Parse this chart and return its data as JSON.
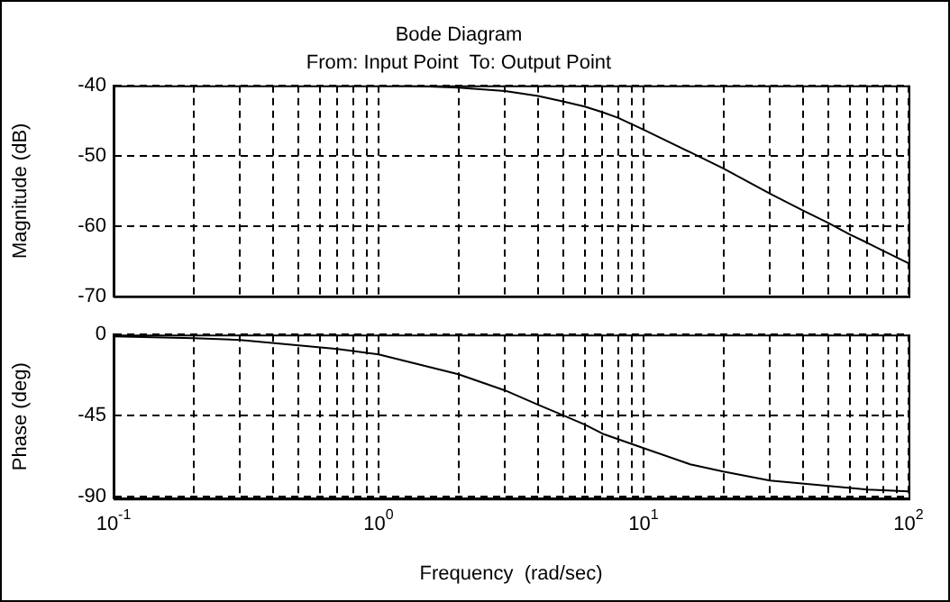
{
  "chart_data": [
    {
      "type": "line",
      "title": "Bode Diagram",
      "subtitle": "From: Input Point  To: Output Point",
      "ylabel": "Magnitude (dB)",
      "log": "x",
      "grid": true,
      "marker": "none",
      "line_style": "solid",
      "tick_labels": "y",
      "xlim": [
        0.1,
        100
      ],
      "ylim": [
        -70,
        -40
      ],
      "yticks": [
        -70,
        -60,
        -50,
        -40
      ],
      "xticks": [
        {
          "value": 0.1,
          "label": null
        },
        {
          "value": 0.2,
          "label": null
        },
        {
          "value": 0.3,
          "label": null
        },
        {
          "value": 0.4,
          "label": null
        },
        {
          "value": 0.5,
          "label": null
        },
        {
          "value": 0.6,
          "label": null
        },
        {
          "value": 0.7,
          "label": null
        },
        {
          "value": 0.8,
          "label": null
        },
        {
          "value": 0.9,
          "label": null
        },
        {
          "value": 1,
          "label": null
        },
        {
          "value": 2,
          "label": null
        },
        {
          "value": 3,
          "label": null
        },
        {
          "value": 4,
          "label": null
        },
        {
          "value": 5,
          "label": null
        },
        {
          "value": 6,
          "label": null
        },
        {
          "value": 7,
          "label": null
        },
        {
          "value": 8,
          "label": null
        },
        {
          "value": 9,
          "label": null
        },
        {
          "value": 10,
          "label": null
        },
        {
          "value": 20,
          "label": null
        },
        {
          "value": 30,
          "label": null
        },
        {
          "value": 40,
          "label": null
        },
        {
          "value": 50,
          "label": null
        },
        {
          "value": 60,
          "label": null
        },
        {
          "value": 70,
          "label": null
        },
        {
          "value": 80,
          "label": null
        },
        {
          "value": 90,
          "label": null
        },
        {
          "value": 100,
          "label": null
        }
      ],
      "series": [
        {
          "color": "#000000",
          "x": [
            1.2,
            2,
            3,
            4,
            5,
            6,
            7,
            8,
            10,
            15,
            20,
            30,
            40,
            50,
            60,
            70,
            80,
            100
          ],
          "values": [
            -40.0,
            -40.3,
            -40.8,
            -41.5,
            -42.3,
            -43.0,
            -43.8,
            -44.6,
            -46.3,
            -49.5,
            -51.8,
            -55.4,
            -57.8,
            -59.6,
            -61.2,
            -62.4,
            -63.5,
            -65.3
          ]
        }
      ]
    },
    {
      "type": "line",
      "xlabel": "Frequency  (rad/sec)",
      "ylabel": "Phase (deg)",
      "log": "x",
      "grid": true,
      "marker": "none",
      "line_style": "solid",
      "xlim": [
        0.1,
        100
      ],
      "ylim": [
        -91,
        0
      ],
      "yticks": [
        -90,
        -45,
        0
      ],
      "xticks": [
        {
          "value": 0.1,
          "label": "10$^{-1}$"
        },
        {
          "value": 0.2,
          "label": null
        },
        {
          "value": 0.3,
          "label": null
        },
        {
          "value": 0.4,
          "label": null
        },
        {
          "value": 0.5,
          "label": null
        },
        {
          "value": 0.6,
          "label": null
        },
        {
          "value": 0.7,
          "label": null
        },
        {
          "value": 0.8,
          "label": null
        },
        {
          "value": 0.9,
          "label": null
        },
        {
          "value": 1,
          "label": "10$^{0}$"
        },
        {
          "value": 2,
          "label": null
        },
        {
          "value": 3,
          "label": null
        },
        {
          "value": 4,
          "label": null
        },
        {
          "value": 5,
          "label": null
        },
        {
          "value": 6,
          "label": null
        },
        {
          "value": 7,
          "label": null
        },
        {
          "value": 8,
          "label": null
        },
        {
          "value": 9,
          "label": null
        },
        {
          "value": 10,
          "label": "10$^{1}$"
        },
        {
          "value": 20,
          "label": null
        },
        {
          "value": 30,
          "label": null
        },
        {
          "value": 40,
          "label": null
        },
        {
          "value": 50,
          "label": null
        },
        {
          "value": 60,
          "label": null
        },
        {
          "value": 70,
          "label": null
        },
        {
          "value": 80,
          "label": null
        },
        {
          "value": 90,
          "label": null
        },
        {
          "value": 100,
          "label": "10$^{2}$"
        }
      ],
      "series": [
        {
          "color": "#000000",
          "x": [
            0.1,
            0.2,
            0.3,
            0.5,
            0.7,
            1,
            2,
            3,
            4,
            5,
            6,
            7,
            8,
            10,
            15,
            20,
            30,
            50,
            70,
            100
          ],
          "values": [
            -1,
            -2,
            -3,
            -6,
            -8,
            -11,
            -22,
            -31,
            -39,
            -45,
            -50,
            -55,
            -58,
            -63,
            -72,
            -76,
            -81,
            -84,
            -86,
            -87
          ]
        }
      ]
    }
  ]
}
